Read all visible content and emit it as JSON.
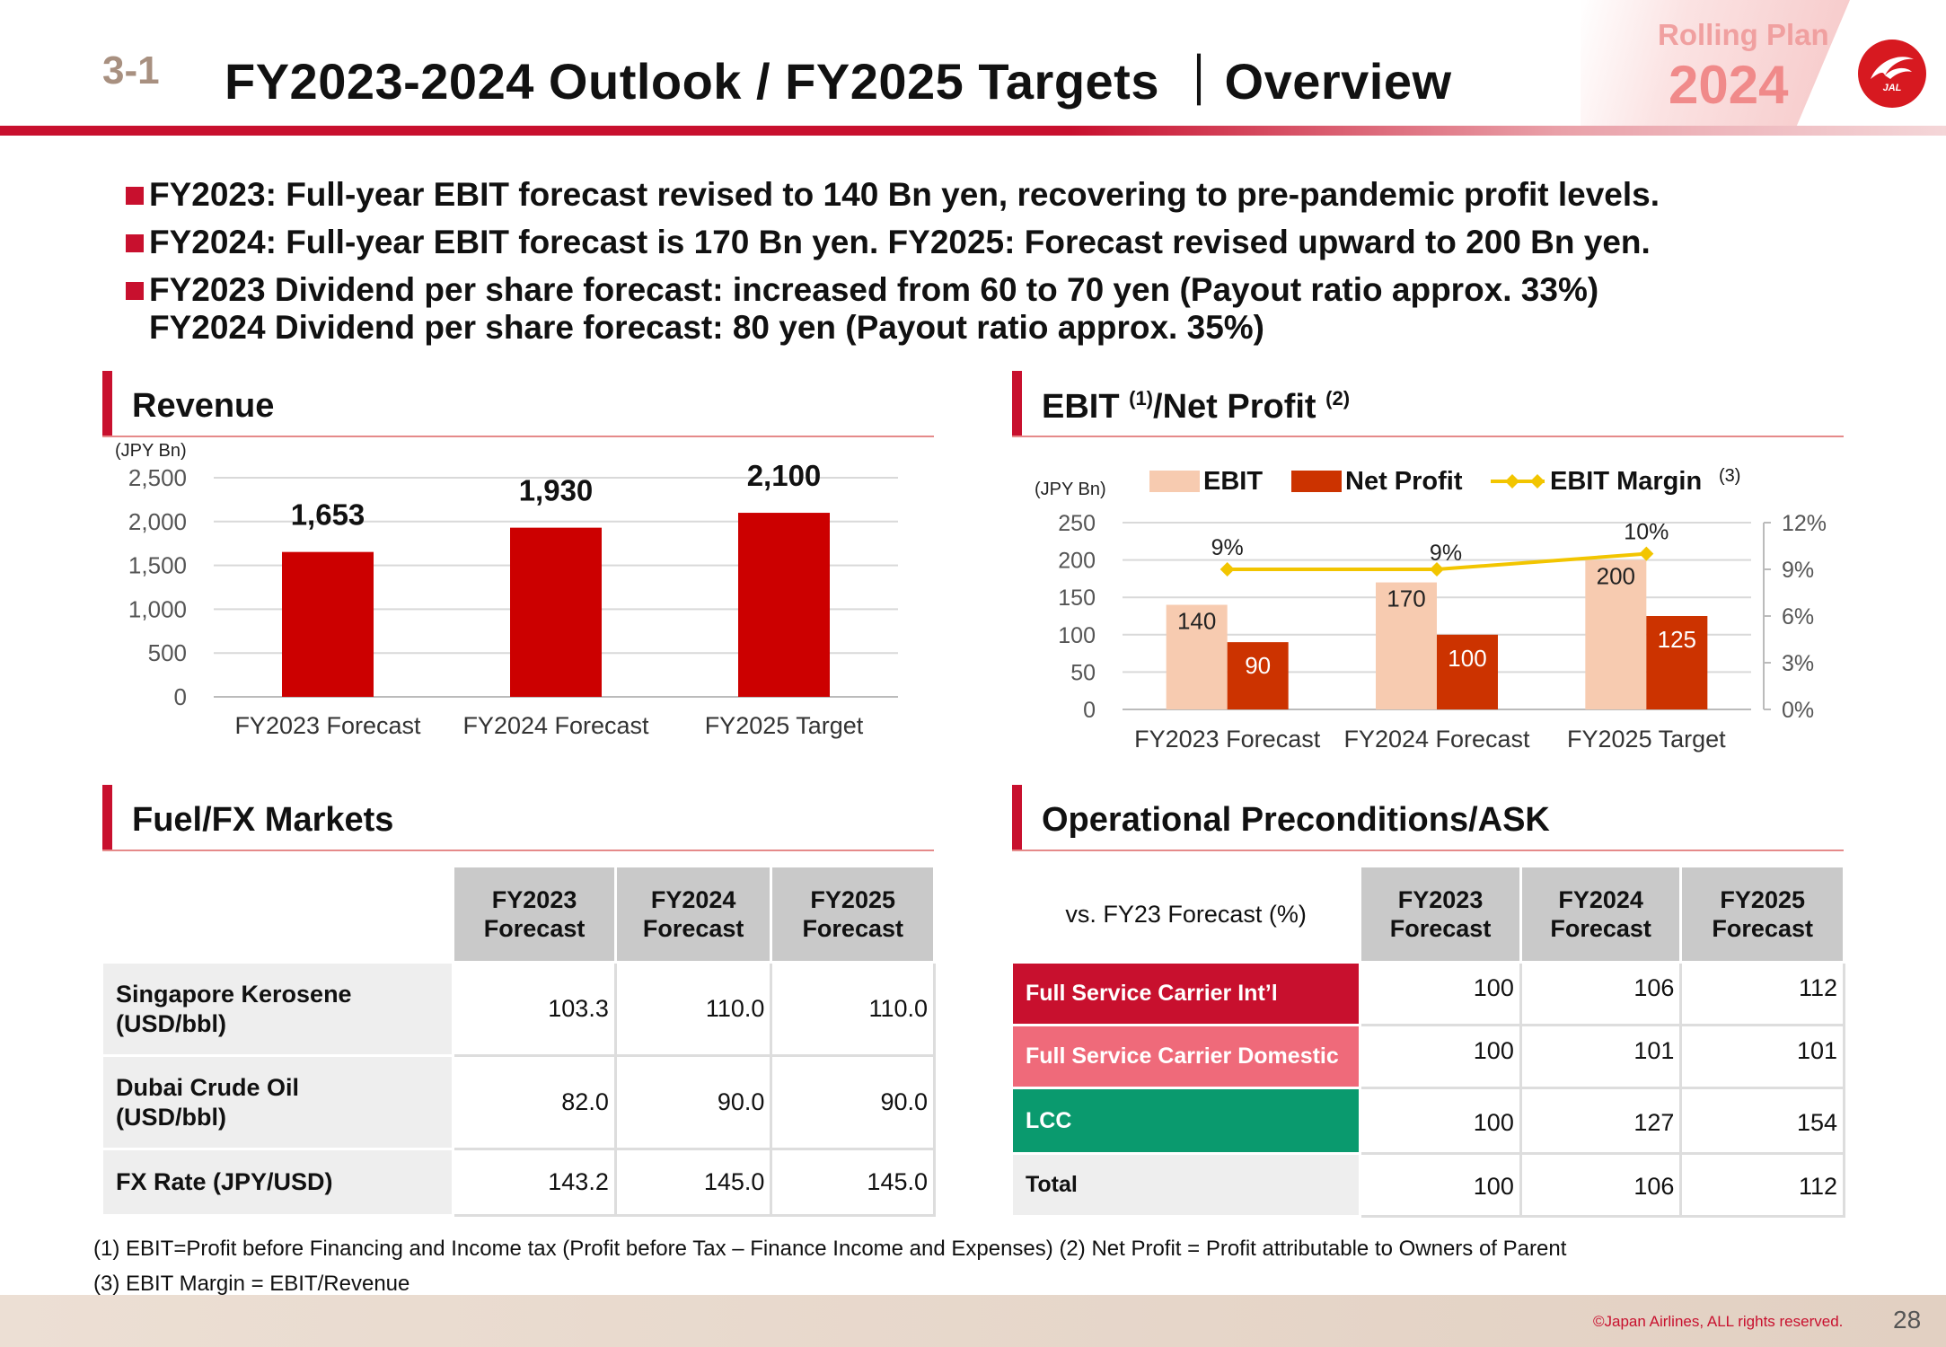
{
  "header": {
    "section_number": "3-1",
    "title": "FY2023-2024 Outlook / FY2025 Targets ｜Overview",
    "rolling_plan_label": "Rolling Plan",
    "rolling_plan_year": "2024",
    "logo_text": "JAL"
  },
  "bullets": [
    {
      "text": "FY2023: Full-year EBIT forecast revised to 140 Bn yen, recovering to pre-pandemic profit levels."
    },
    {
      "text": "FY2024: Full-year EBIT forecast is 170 Bn yen. FY2025: Forecast revised upward to 200 Bn yen."
    },
    {
      "text": "FY2023 Dividend per share forecast: increased from 60 to 70 yen (Payout ratio approx. 33%)",
      "text2": "FY2024 Dividend per share forecast: 80 yen (Payout ratio approx. 35%)"
    }
  ],
  "sections": {
    "revenue": "Revenue",
    "ebit_main": "EBIT ",
    "ebit_sup1": "(1)",
    "ebit_mid": "/Net Profit ",
    "ebit_sup2": "(2)",
    "fuel": "Fuel/FX Markets",
    "ops": "Operational Preconditions/ASK"
  },
  "chart_data": [
    {
      "type": "bar",
      "title": "Revenue",
      "unit_label": "(JPY Bn)",
      "categories": [
        "FY2023 Forecast",
        "FY2024 Forecast",
        "FY2025 Target"
      ],
      "values": [
        1653,
        1930,
        2100
      ],
      "value_labels": [
        "1,653",
        "1,930",
        "2,100"
      ],
      "yticks": [
        "0",
        "500",
        "1,000",
        "1,500",
        "2,000",
        "2,500"
      ],
      "ylim": [
        0,
        2500
      ],
      "color": "#cc0000",
      "grid": true
    },
    {
      "type": "bar",
      "title": "EBIT/Net Profit",
      "unit_label": "(JPY Bn)",
      "categories": [
        "FY2023 Forecast",
        "FY2024 Forecast",
        "FY2025 Target"
      ],
      "series": [
        {
          "name": "EBIT",
          "values": [
            140,
            170,
            200
          ],
          "color": "#f7cbb0"
        },
        {
          "name": "Net Profit",
          "values": [
            90,
            100,
            125
          ],
          "color": "#cc3300"
        }
      ],
      "line_series": {
        "name": "EBIT Margin",
        "name_sup": "(3)",
        "values": [
          9,
          9,
          10
        ],
        "value_labels": [
          "9%",
          "9%",
          "10%"
        ],
        "color": "#f2c500",
        "axis": "right"
      },
      "yticks": [
        "0",
        "50",
        "100",
        "150",
        "200",
        "250"
      ],
      "ylim": [
        0,
        250
      ],
      "y2ticks": [
        "0%",
        "3%",
        "6%",
        "9%",
        "12%"
      ],
      "y2lim": [
        0,
        12
      ],
      "legend_position": "top",
      "grid": true
    }
  ],
  "fuel_table": {
    "columns": [
      "FY2023\nForecast",
      "FY2024\nForecast",
      "FY2025\nForecast"
    ],
    "rows": [
      {
        "label": "Singapore Kerosene\n(USD/bbl)",
        "values": [
          "103.3",
          "110.0",
          "110.0"
        ]
      },
      {
        "label": "Dubai Crude Oil\n(USD/bbl)",
        "values": [
          "82.0",
          "90.0",
          "90.0"
        ]
      },
      {
        "label": "FX Rate (JPY/USD)",
        "values": [
          "143.2",
          "145.0",
          "145.0"
        ]
      }
    ]
  },
  "ops_table": {
    "lead_header": "vs. FY23 Forecast (%)",
    "columns": [
      "FY2023\nForecast",
      "FY2024\nForecast",
      "FY2025\nForecast"
    ],
    "rows": [
      {
        "label": "Full Service Carrier Int’l",
        "values": [
          "100",
          "106",
          "112"
        ],
        "color": "#c8102e"
      },
      {
        "label": "Full Service Carrier Domestic",
        "values": [
          "100",
          "101",
          "101"
        ],
        "color": "#ef6a7a"
      },
      {
        "label": "LCC",
        "values": [
          "100",
          "127",
          "154"
        ],
        "color": "#0a9a6e"
      },
      {
        "label": "Total",
        "values": [
          "100",
          "106",
          "112"
        ],
        "color": "#eeeeee"
      }
    ]
  },
  "footnotes": [
    "(1) EBIT=Profit before Financing and Income tax (Profit before Tax – Finance Income and Expenses)  (2) Net Profit = Profit attributable to Owners of Parent",
    "(3) EBIT Margin = EBIT/Revenue"
  ],
  "footer": {
    "copyright": "©Japan Airlines, ALL rights reserved.",
    "page": "28"
  }
}
